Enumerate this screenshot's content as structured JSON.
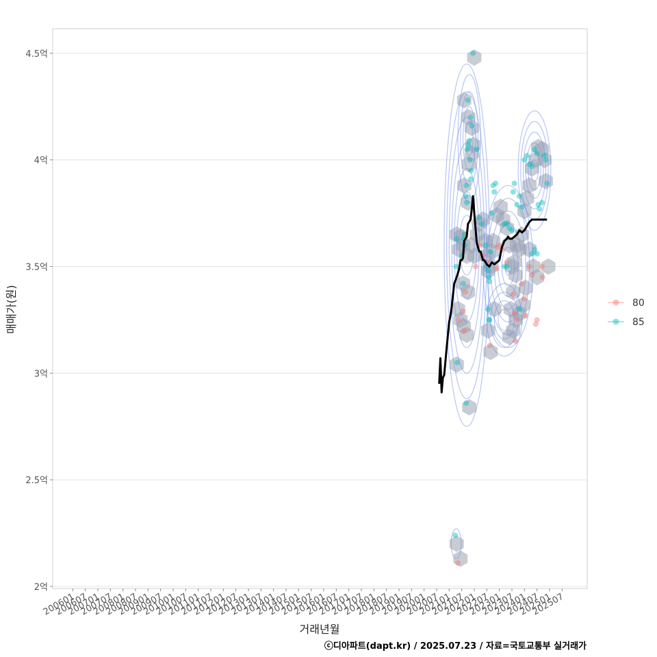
{
  "chart_data": {
    "type": "scatter",
    "title": "",
    "xlabel": "거래년월",
    "ylabel": "매매가(원)",
    "caption": "ⓒ디아파트(dapt.kr) / 2025.07.23 / 자료=국토교통부 실거래가",
    "x_ticks": [
      "200601",
      "200607",
      "200701",
      "200707",
      "200801",
      "200807",
      "200901",
      "200907",
      "201001",
      "201007",
      "201101",
      "201107",
      "201201",
      "201207",
      "201301",
      "201307",
      "201401",
      "201407",
      "201501",
      "201507",
      "201601",
      "201607",
      "201701",
      "201707",
      "201801",
      "201807",
      "201901",
      "201907",
      "202001",
      "202007",
      "202101",
      "202107",
      "202201",
      "202207",
      "202301",
      "202307",
      "202401",
      "202407",
      "202501",
      "202507"
    ],
    "x_range": [
      2005.2,
      2026.5
    ],
    "y_ticks": [
      {
        "value": 2.0,
        "label": "2억"
      },
      {
        "value": 2.5,
        "label": "2.5억"
      },
      {
        "value": 3.0,
        "label": "3억"
      },
      {
        "value": 3.5,
        "label": "3.5억"
      },
      {
        "value": 4.0,
        "label": "4억"
      },
      {
        "value": 4.5,
        "label": "4.5억"
      }
    ],
    "ylim": [
      1.99,
      4.615
    ],
    "grid": true,
    "legend": {
      "position": "right",
      "entries": [
        {
          "label": "80",
          "color": "#F8766D"
        },
        {
          "label": "85",
          "color": "#00BFC4"
        }
      ]
    },
    "colors": {
      "area80": "#F8766D",
      "area85": "#00BFC4",
      "trend": "#000000",
      "hexbin": "#9AA3AE",
      "density": "#7B97E8"
    },
    "series": [
      {
        "name": "80",
        "points": [
          [
            2021.62,
            3.65
          ],
          [
            2021.65,
            3.38
          ],
          [
            2021.55,
            3.29
          ],
          [
            2021.6,
            3.2
          ],
          [
            2021.4,
            3.25
          ],
          [
            2021.35,
            2.11
          ],
          [
            2022.05,
            3.5
          ],
          [
            2022.2,
            3.6
          ],
          [
            2022.35,
            3.55
          ],
          [
            2022.5,
            3.52
          ],
          [
            2022.62,
            3.13
          ],
          [
            2022.9,
            3.49
          ],
          [
            2022.95,
            3.59
          ],
          [
            2023.0,
            3.6
          ],
          [
            2023.1,
            3.58
          ],
          [
            2023.3,
            3.52
          ],
          [
            2023.55,
            3.37
          ],
          [
            2023.6,
            3.28
          ],
          [
            2023.7,
            3.25
          ],
          [
            2023.65,
            3.15
          ],
          [
            2023.9,
            3.42
          ],
          [
            2024.0,
            3.35
          ],
          [
            2024.05,
            3.27
          ],
          [
            2024.2,
            3.5
          ],
          [
            2024.3,
            3.46
          ],
          [
            2024.45,
            3.23
          ],
          [
            2024.5,
            3.25
          ],
          [
            2024.7,
            3.5
          ],
          [
            2024.72,
            3.45
          ]
        ]
      },
      {
        "name": "85",
        "points": [
          [
            2021.95,
            4.5
          ],
          [
            2021.74,
            4.28
          ],
          [
            2021.85,
            4.2
          ],
          [
            2021.9,
            4.16
          ],
          [
            2021.72,
            4.05
          ],
          [
            2021.76,
            4.07
          ],
          [
            2021.8,
            4.09
          ],
          [
            2021.82,
            4.0
          ],
          [
            2021.88,
            3.95
          ],
          [
            2021.86,
            3.91
          ],
          [
            2021.68,
            3.88
          ],
          [
            2021.66,
            3.83
          ],
          [
            2021.7,
            3.8
          ],
          [
            2021.6,
            3.65
          ],
          [
            2021.58,
            3.63
          ],
          [
            2021.62,
            3.6
          ],
          [
            2021.3,
            3.63
          ],
          [
            2021.28,
            3.5
          ],
          [
            2021.5,
            3.55
          ],
          [
            2021.56,
            3.42
          ],
          [
            2021.32,
            3.05
          ],
          [
            2021.24,
            2.24
          ],
          [
            2021.68,
            2.86
          ],
          [
            2022.1,
            4.05
          ],
          [
            2022.2,
            3.73
          ],
          [
            2022.3,
            3.7
          ],
          [
            2022.45,
            3.6
          ],
          [
            2022.5,
            3.5
          ],
          [
            2022.55,
            3.48
          ],
          [
            2022.58,
            3.45
          ],
          [
            2022.6,
            3.43
          ],
          [
            2022.65,
            3.57
          ],
          [
            2022.7,
            3.75
          ],
          [
            2022.75,
            3.88
          ],
          [
            2022.8,
            3.85
          ],
          [
            2022.85,
            3.89
          ],
          [
            2022.55,
            3.3
          ],
          [
            2022.6,
            3.25
          ],
          [
            2023.2,
            3.7
          ],
          [
            2023.3,
            3.7
          ],
          [
            2023.4,
            3.68
          ],
          [
            2023.5,
            3.67
          ],
          [
            2023.55,
            3.85
          ],
          [
            2023.6,
            3.89
          ],
          [
            2023.7,
            3.79
          ],
          [
            2023.8,
            3.83
          ],
          [
            2023.9,
            3.78
          ],
          [
            2024.0,
            4.0
          ],
          [
            2024.1,
            4.02
          ],
          [
            2024.2,
            3.98
          ],
          [
            2024.3,
            3.97
          ],
          [
            2024.4,
            4.05
          ],
          [
            2024.5,
            4.03
          ],
          [
            2024.55,
            3.79
          ],
          [
            2024.6,
            3.77
          ],
          [
            2024.7,
            3.8
          ],
          [
            2024.8,
            4.02
          ],
          [
            2024.85,
            4.0
          ],
          [
            2024.9,
            3.89
          ],
          [
            2024.3,
            3.56
          ],
          [
            2024.4,
            3.58
          ],
          [
            2024.5,
            3.56
          ],
          [
            2023.2,
            3.5
          ],
          [
            2023.3,
            3.5
          ],
          [
            2023.8,
            3.3
          ],
          [
            2022.6,
            3.25
          ]
        ]
      }
    ],
    "trend_line": {
      "name": "moving average",
      "x": [
        2020.6,
        2020.65,
        2020.7,
        2020.75,
        2020.8,
        2020.9,
        2021.0,
        2021.05,
        2021.1,
        2021.2,
        2021.3,
        2021.4,
        2021.45,
        2021.5,
        2021.55,
        2021.6,
        2021.7,
        2021.75,
        2021.8,
        2021.85,
        2021.9,
        2021.95,
        2022.0,
        2022.05,
        2022.1,
        2022.15,
        2022.2,
        2022.25,
        2022.35,
        2022.4,
        2022.5,
        2022.6,
        2022.7,
        2022.8,
        2022.9,
        2023.0,
        2023.1,
        2023.2,
        2023.3,
        2023.35,
        2023.4,
        2023.5,
        2023.6,
        2023.7,
        2023.8,
        2023.9,
        2024.0,
        2024.1,
        2024.2,
        2024.3,
        2024.4,
        2024.5,
        2024.6,
        2024.7,
        2024.8,
        2024.9
      ],
      "y": [
        2.95,
        3.07,
        2.91,
        2.98,
        2.99,
        3.12,
        3.24,
        3.27,
        3.31,
        3.42,
        3.45,
        3.49,
        3.53,
        3.53,
        3.54,
        3.62,
        3.64,
        3.7,
        3.71,
        3.72,
        3.77,
        3.83,
        3.75,
        3.68,
        3.61,
        3.59,
        3.57,
        3.57,
        3.53,
        3.53,
        3.51,
        3.5,
        3.52,
        3.51,
        3.52,
        3.53,
        3.59,
        3.62,
        3.63,
        3.64,
        3.63,
        3.63,
        3.64,
        3.65,
        3.67,
        3.66,
        3.67,
        3.69,
        3.71,
        3.72,
        3.72,
        3.72,
        3.72,
        3.72,
        3.72,
        3.72
      ]
    },
    "hexbins": [
      [
        2022.0,
        4.48
      ],
      [
        2021.6,
        4.28
      ],
      [
        2021.76,
        4.2
      ],
      [
        2021.9,
        4.15
      ],
      [
        2021.96,
        4.07
      ],
      [
        2021.78,
        3.98
      ],
      [
        2021.9,
        4.03
      ],
      [
        2021.6,
        3.88
      ],
      [
        2021.75,
        3.8
      ],
      [
        2021.3,
        3.65
      ],
      [
        2021.46,
        3.64
      ],
      [
        2021.4,
        3.58
      ],
      [
        2021.56,
        3.6
      ],
      [
        2021.7,
        3.55
      ],
      [
        2021.9,
        3.6
      ],
      [
        2022.0,
        3.55
      ],
      [
        2022.1,
        3.65
      ],
      [
        2022.2,
        3.7
      ],
      [
        2022.35,
        3.72
      ],
      [
        2022.45,
        3.62
      ],
      [
        2022.5,
        3.55
      ],
      [
        2022.55,
        3.48
      ],
      [
        2022.65,
        3.5
      ],
      [
        2022.7,
        3.57
      ],
      [
        2022.75,
        3.62
      ],
      [
        2022.9,
        3.74
      ],
      [
        2023.05,
        3.78
      ],
      [
        2023.15,
        3.72
      ],
      [
        2023.3,
        3.68
      ],
      [
        2023.4,
        3.6
      ],
      [
        2023.5,
        3.5
      ],
      [
        2023.6,
        3.52
      ],
      [
        2023.7,
        3.6
      ],
      [
        2023.8,
        3.58
      ],
      [
        2023.9,
        3.65
      ],
      [
        2024.0,
        3.76
      ],
      [
        2024.1,
        3.82
      ],
      [
        2024.2,
        3.88
      ],
      [
        2024.3,
        3.96
      ],
      [
        2024.45,
        4.0
      ],
      [
        2024.55,
        4.06
      ],
      [
        2024.7,
        4.05
      ],
      [
        2024.8,
        4.0
      ],
      [
        2024.85,
        3.9
      ],
      [
        2024.95,
        3.5
      ],
      [
        2024.5,
        3.45
      ],
      [
        2024.35,
        3.5
      ],
      [
        2024.2,
        3.58
      ],
      [
        2024.05,
        3.4
      ],
      [
        2023.95,
        3.32
      ],
      [
        2023.8,
        3.28
      ],
      [
        2023.65,
        3.25
      ],
      [
        2023.55,
        3.2
      ],
      [
        2023.4,
        3.17
      ],
      [
        2022.65,
        3.1
      ],
      [
        2022.8,
        3.3
      ],
      [
        2022.55,
        3.2
      ],
      [
        2021.75,
        3.38
      ],
      [
        2021.55,
        3.42
      ],
      [
        2021.35,
        3.3
      ],
      [
        2021.45,
        3.25
      ],
      [
        2021.58,
        3.22
      ],
      [
        2021.7,
        3.18
      ],
      [
        2021.3,
        3.04
      ],
      [
        2021.8,
        2.84
      ],
      [
        2021.3,
        2.2
      ],
      [
        2021.45,
        2.13
      ],
      [
        2023.45,
        3.3
      ],
      [
        2023.55,
        3.38
      ],
      [
        2023.65,
        3.46
      ]
    ],
    "density_rings": [
      {
        "cx": 2021.7,
        "cy": 3.6,
        "rx": [
          0.9,
          0.8,
          0.7,
          0.6,
          0.5,
          0.4,
          0.3
        ],
        "ry": [
          0.85,
          0.72,
          0.6,
          0.48,
          0.36,
          0.25,
          0.14
        ]
      },
      {
        "cx": 2021.8,
        "cy": 4.1,
        "rx": [
          0.45,
          0.35,
          0.25,
          0.15
        ],
        "ry": [
          0.3,
          0.22,
          0.15,
          0.08
        ]
      },
      {
        "cx": 2023.35,
        "cy": 3.5,
        "rx": [
          1.0,
          0.85,
          0.7,
          0.55,
          0.4,
          0.25,
          0.12
        ],
        "ry": [
          0.38,
          0.32,
          0.26,
          0.2,
          0.14,
          0.09,
          0.04
        ]
      },
      {
        "cx": 2024.4,
        "cy": 3.95,
        "rx": [
          0.65,
          0.55,
          0.45,
          0.35,
          0.25,
          0.15
        ],
        "ry": [
          0.28,
          0.23,
          0.18,
          0.13,
          0.09,
          0.05
        ]
      },
      {
        "cx": 2023.2,
        "cy": 3.25,
        "rx": [
          0.7,
          0.55,
          0.4,
          0.25
        ],
        "ry": [
          0.17,
          0.13,
          0.09,
          0.05
        ]
      },
      {
        "cx": 2021.28,
        "cy": 2.2,
        "rx": [
          0.2
        ],
        "ry": [
          0.07
        ]
      }
    ]
  }
}
